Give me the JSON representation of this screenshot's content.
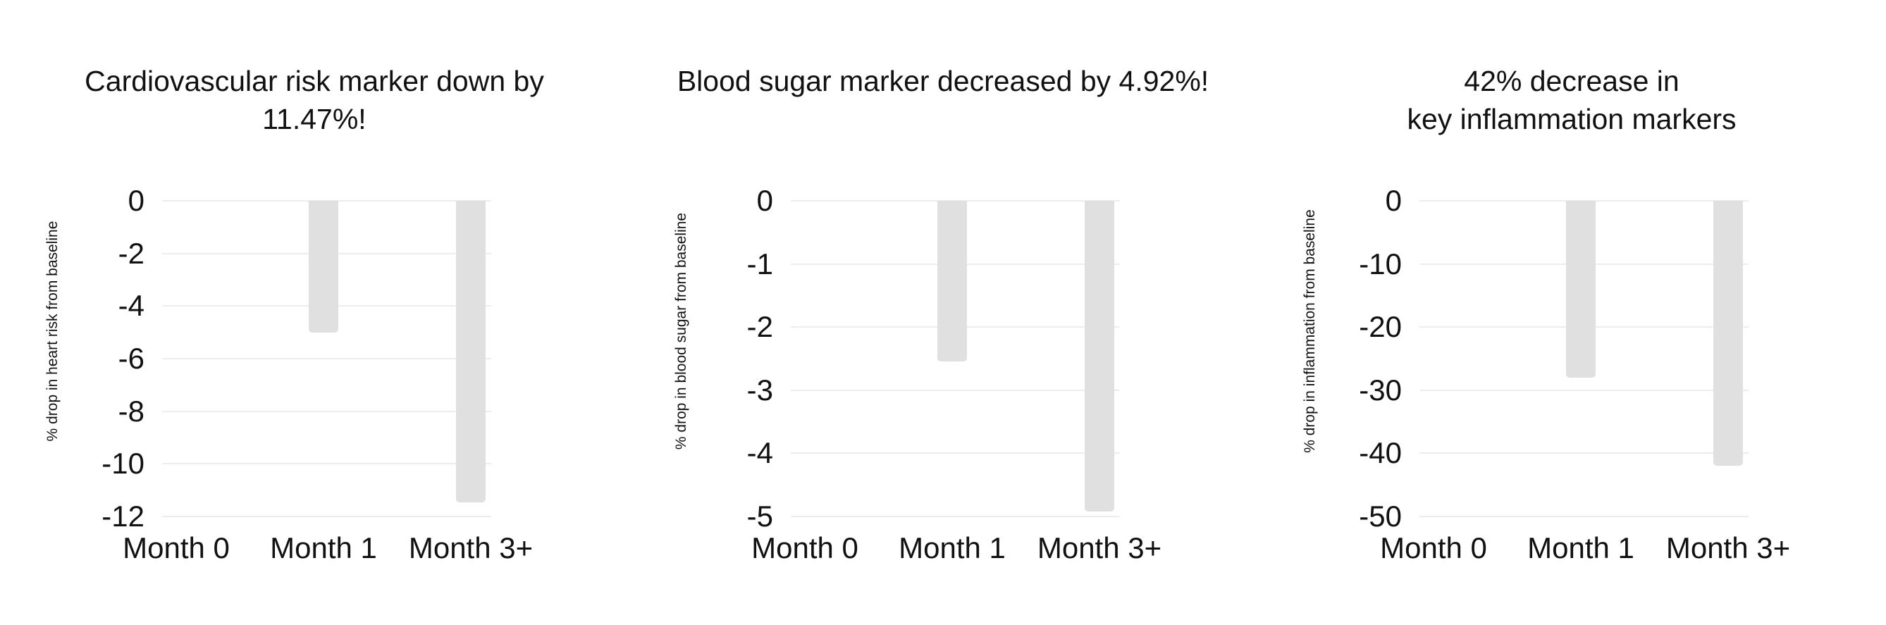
{
  "colors": {
    "background": "#ffffff",
    "bar": "#e0e0e0",
    "gridline": "#ededed",
    "text": "#111111"
  },
  "chart_data": [
    {
      "type": "bar",
      "title": "Cardiovascular risk marker down by\n11.47%!",
      "ylabel": "% drop in heart risk from baseline",
      "xlabel": "",
      "categories": [
        "Month 0",
        "Month 1",
        "Month 3+"
      ],
      "values": [
        0,
        -5.0,
        -11.47
      ],
      "yticks": [
        0,
        -2,
        -4,
        -6,
        -8,
        -10,
        -12
      ],
      "ylim": [
        -12,
        0
      ],
      "grid": true,
      "legend": "none"
    },
    {
      "type": "bar",
      "title": "Blood sugar marker decreased by 4.92%!",
      "ylabel": "% drop in blood sugar from baseline",
      "xlabel": "",
      "categories": [
        "Month 0",
        "Month 1",
        "Month 3+"
      ],
      "values": [
        0,
        -2.55,
        -4.92
      ],
      "yticks": [
        0,
        -1,
        -2,
        -3,
        -4,
        -5
      ],
      "ylim": [
        -5,
        0
      ],
      "grid": true,
      "legend": "none"
    },
    {
      "type": "bar",
      "title": "42% decrease in\nkey inflammation markers",
      "ylabel": "% drop in inflammation from baseline",
      "xlabel": "",
      "categories": [
        "Month 0",
        "Month 1",
        "Month 3+"
      ],
      "values": [
        0,
        -28,
        -42
      ],
      "yticks": [
        0,
        -10,
        -20,
        -30,
        -40,
        -50
      ],
      "ylim": [
        -50,
        0
      ],
      "grid": true,
      "legend": "none"
    }
  ]
}
